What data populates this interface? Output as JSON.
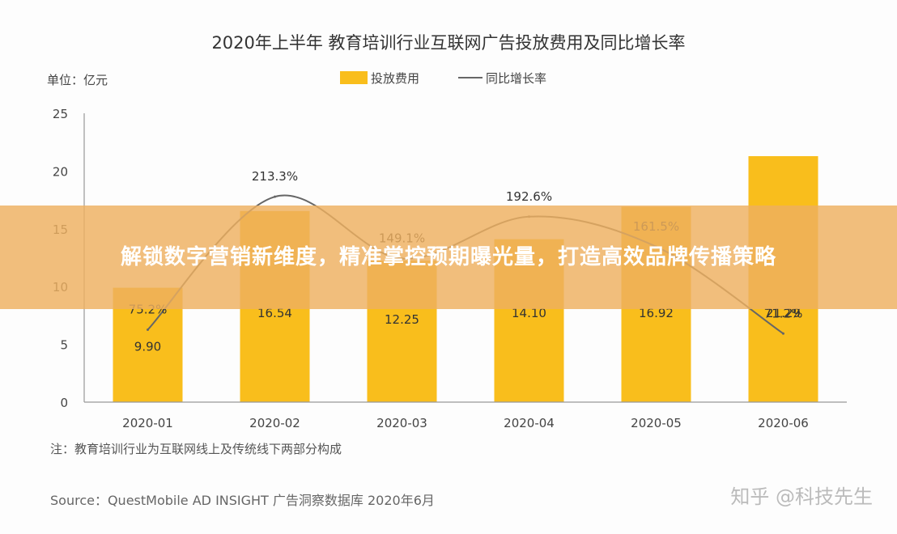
{
  "chart_data": {
    "type": "bar",
    "title": "2020年上半年 教育培训行业互联网广告投放费用及同比增长率",
    "unit_label": "单位：亿元",
    "categories": [
      "2020-01",
      "2020-02",
      "2020-03",
      "2020-04",
      "2020-05",
      "2020-06"
    ],
    "series": [
      {
        "name": "投放费用",
        "type": "bar",
        "values": [
          9.9,
          16.54,
          12.25,
          14.1,
          16.92,
          21.29
        ],
        "labels": [
          "9.90",
          "16.54",
          "12.25",
          "14.10",
          "16.92",
          "21.29"
        ],
        "color": "#F9BE1C"
      },
      {
        "name": "同比增长率",
        "type": "line",
        "values": [
          75.2,
          213.3,
          149.1,
          192.6,
          161.5,
          71.2
        ],
        "labels": [
          "75.2%",
          "213.3%",
          "149.1%",
          "192.6%",
          "161.5%",
          "71.2%"
        ],
        "color": "#666666"
      }
    ],
    "yticks": [
      "0",
      "5",
      "10",
      "15",
      "20",
      "25"
    ],
    "ylim": [
      0,
      25
    ],
    "line_ylim": [
      0,
      300
    ],
    "legend_position": "top-center",
    "grid": false,
    "note": "注：教育培训行业为互联网线上及传统线下两部分构成",
    "source": "Source：QuestMobile AD INSIGHT 广告洞察数据库 2020年6月"
  },
  "overlay": {
    "text": "解锁数字营销新维度，精准掌控预期曝光量，打造高效品牌传播策略"
  },
  "watermark": "知乎 @科技先生"
}
